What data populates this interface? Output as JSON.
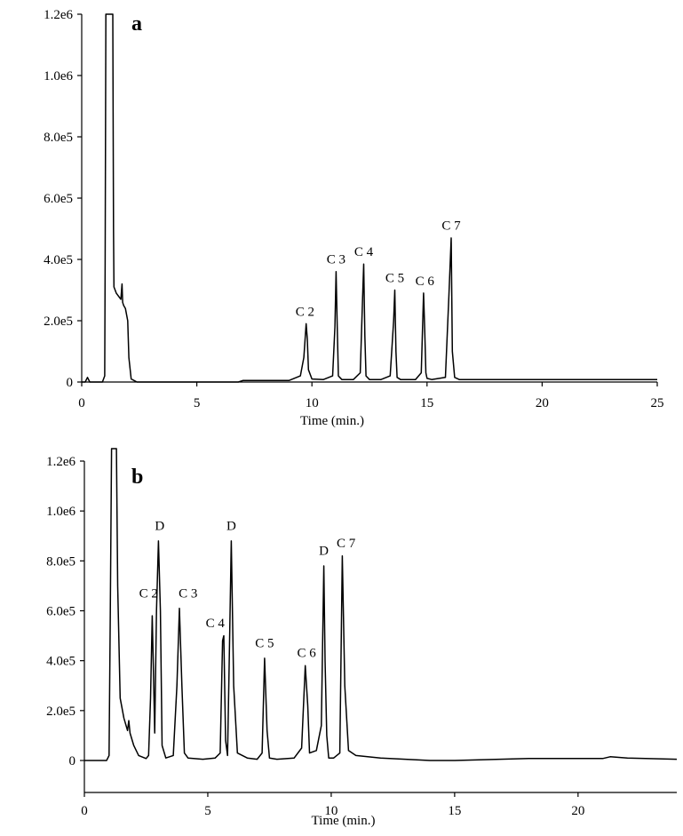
{
  "chart_data": [
    {
      "type": "line",
      "panel_label": "a",
      "xlabel": "Time (min.)",
      "ylabel": "",
      "xlim": [
        0,
        25
      ],
      "ylim": [
        0,
        1200000
      ],
      "grid": false,
      "x_ticks": [
        {
          "value": 0,
          "label": "0"
        },
        {
          "value": 5,
          "label": "5"
        },
        {
          "value": 10,
          "label": "10"
        },
        {
          "value": 15,
          "label": "15"
        },
        {
          "value": 20,
          "label": "20"
        },
        {
          "value": 25,
          "label": "25"
        }
      ],
      "y_ticks": [
        {
          "value": 0,
          "label": "0"
        },
        {
          "value": 200000,
          "label": "2.0e5"
        },
        {
          "value": 400000,
          "label": "4.0e5"
        },
        {
          "value": 600000,
          "label": "6.0e5"
        },
        {
          "value": 800000,
          "label": "8.0e5"
        },
        {
          "value": 1000000,
          "label": "1.0e6"
        },
        {
          "value": 1200000,
          "label": "1.2e6"
        }
      ],
      "series": [
        {
          "x": [
            0,
            0.15,
            0.25,
            0.35,
            0.5,
            0.9,
            1.0,
            1.02,
            1.05,
            1.1,
            1.35,
            1.38,
            1.4,
            1.5,
            1.6,
            1.7,
            1.75,
            1.78,
            1.82,
            1.9,
            2.0,
            2.05,
            2.15,
            2.4,
            3.0,
            5.0,
            6.8,
            7.0,
            9.0,
            9.5,
            9.65,
            9.75,
            9.8,
            9.85,
            10.0,
            10.5,
            10.9,
            11.0,
            11.05,
            11.1,
            11.15,
            11.3,
            11.8,
            12.1,
            12.2,
            12.25,
            12.3,
            12.35,
            12.5,
            13.0,
            13.4,
            13.55,
            13.6,
            13.65,
            13.7,
            13.85,
            14.5,
            14.75,
            14.85,
            14.9,
            14.95,
            15.0,
            15.2,
            15.8,
            15.95,
            16.05,
            16.1,
            16.2,
            16.4,
            18.0,
            20.0,
            22.0,
            25.0
          ],
          "y": [
            0,
            0,
            15000,
            0,
            0,
            0,
            20000,
            400000,
            1200000,
            1200000,
            1200000,
            500000,
            310000,
            290000,
            280000,
            270000,
            320000,
            260000,
            250000,
            240000,
            200000,
            80000,
            10000,
            0,
            0,
            0,
            0,
            5000,
            5000,
            20000,
            80000,
            190000,
            140000,
            40000,
            10000,
            8000,
            20000,
            180000,
            360000,
            180000,
            20000,
            8000,
            8000,
            30000,
            270000,
            385000,
            150000,
            20000,
            8000,
            8000,
            20000,
            200000,
            300000,
            100000,
            15000,
            8000,
            8000,
            30000,
            290000,
            170000,
            30000,
            12000,
            8000,
            15000,
            280000,
            470000,
            100000,
            15000,
            8000,
            8000,
            8000,
            8000,
            8000
          ]
        }
      ],
      "annotations": [
        {
          "text": "C 2",
          "x": 9.7,
          "y": 205000
        },
        {
          "text": "C 3",
          "x": 11.05,
          "y": 375000
        },
        {
          "text": "C 4",
          "x": 12.25,
          "y": 400000
        },
        {
          "text": "C 5",
          "x": 13.6,
          "y": 315000
        },
        {
          "text": "C 6",
          "x": 14.9,
          "y": 305000
        },
        {
          "text": "C 7",
          "x": 16.05,
          "y": 485000
        }
      ]
    },
    {
      "type": "line",
      "panel_label": "b",
      "xlabel": "Time (min.)",
      "ylabel": "",
      "xlim": [
        0,
        24
      ],
      "ylim": [
        -120000,
        1250000
      ],
      "grid": false,
      "x_ticks": [
        {
          "value": 0,
          "label": "0"
        },
        {
          "value": 5,
          "label": "5"
        },
        {
          "value": 10,
          "label": "10"
        },
        {
          "value": 15,
          "label": "15"
        },
        {
          "value": 20,
          "label": "20"
        }
      ],
      "y_ticks": [
        {
          "value": 0,
          "label": "0"
        },
        {
          "value": 200000,
          "label": "2.0e5"
        },
        {
          "value": 400000,
          "label": "4.0e5"
        },
        {
          "value": 600000,
          "label": "6.0e5"
        },
        {
          "value": 800000,
          "label": "8.0e5"
        },
        {
          "value": 1000000,
          "label": "1.0e6"
        },
        {
          "value": 1200000,
          "label": "1.2e6"
        }
      ],
      "series": [
        {
          "x": [
            0,
            0.9,
            1.0,
            1.05,
            1.1,
            1.3,
            1.35,
            1.45,
            1.6,
            1.75,
            1.8,
            1.85,
            2.0,
            2.2,
            2.5,
            2.6,
            2.68,
            2.75,
            2.8,
            2.85,
            2.92,
            3.0,
            3.08,
            3.15,
            3.3,
            3.6,
            3.75,
            3.85,
            3.95,
            4.05,
            4.2,
            4.8,
            5.3,
            5.5,
            5.6,
            5.65,
            5.72,
            5.8,
            5.88,
            5.95,
            6.05,
            6.2,
            6.6,
            7.0,
            7.2,
            7.3,
            7.4,
            7.5,
            7.8,
            8.5,
            8.8,
            8.95,
            9.05,
            9.12,
            9.4,
            9.6,
            9.7,
            9.75,
            9.82,
            9.9,
            10.1,
            10.35,
            10.45,
            10.55,
            10.7,
            11.0,
            12.0,
            13.0,
            14.0,
            15.0,
            18.0,
            21.0,
            21.3,
            22.0,
            24.0
          ],
          "y": [
            0,
            0,
            20000,
            600000,
            1250000,
            1250000,
            700000,
            250000,
            170000,
            120000,
            160000,
            110000,
            60000,
            20000,
            8000,
            20000,
            250000,
            580000,
            350000,
            110000,
            600000,
            880000,
            600000,
            60000,
            10000,
            20000,
            300000,
            610000,
            300000,
            30000,
            10000,
            5000,
            10000,
            30000,
            480000,
            500000,
            80000,
            20000,
            460000,
            880000,
            300000,
            30000,
            10000,
            5000,
            30000,
            410000,
            120000,
            10000,
            5000,
            10000,
            50000,
            380000,
            220000,
            30000,
            40000,
            140000,
            780000,
            400000,
            100000,
            10000,
            10000,
            30000,
            820000,
            300000,
            40000,
            20000,
            10000,
            5000,
            0,
            0,
            8000,
            8000,
            15000,
            10000,
            5000
          ]
        }
      ],
      "annotations": [
        {
          "text": "C 2",
          "x": 2.6,
          "y": 640000
        },
        {
          "text": "D",
          "x": 3.05,
          "y": 910000
        },
        {
          "text": "C 3",
          "x": 4.2,
          "y": 640000
        },
        {
          "text": "C 4",
          "x": 5.3,
          "y": 520000
        },
        {
          "text": "D",
          "x": 5.95,
          "y": 910000
        },
        {
          "text": "C 5",
          "x": 7.3,
          "y": 440000
        },
        {
          "text": "C 6",
          "x": 9.0,
          "y": 400000
        },
        {
          "text": "D",
          "x": 9.7,
          "y": 810000
        },
        {
          "text": "C 7",
          "x": 10.6,
          "y": 840000
        }
      ]
    }
  ]
}
